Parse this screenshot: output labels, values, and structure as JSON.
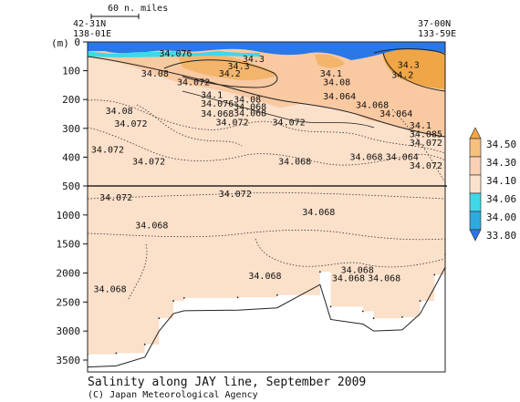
{
  "chart_data": {
    "type": "heatmap",
    "title": "Salinity along JAY line, September 2009",
    "credit": "(C) Japan Meteorological Agency",
    "ylabel": "(m)",
    "scale_bar_label": "60 n. miles",
    "left_station": {
      "lat": "42-31N",
      "lon": "138-01E"
    },
    "right_station": {
      "lat": "37-00N",
      "lon": "133-59E"
    },
    "y_upper_ticks": [
      0,
      100,
      200,
      300,
      400,
      500
    ],
    "y_lower_ticks": [
      1000,
      1500,
      2000,
      2500,
      3000,
      3500
    ],
    "ylim": [
      0,
      3800
    ],
    "depth_break": 500,
    "colorbar": {
      "levels": [
        "34.50",
        "34.30",
        "34.10",
        "34.06",
        "34.00",
        "33.80"
      ],
      "colors": [
        "#f0a646",
        "#f6c07e",
        "#fad1b4",
        "#fbe2cc",
        "#40d8e8",
        "#2eaae0",
        "#2a78e8"
      ]
    },
    "contour_labels": [
      {
        "text": "34.076",
        "x": 0.24,
        "y": 50
      },
      {
        "text": "34.08",
        "x": 0.18,
        "y": 120
      },
      {
        "text": "34.072",
        "x": 0.3,
        "y": 150
      },
      {
        "text": "34.3",
        "x": 0.47,
        "y": 95
      },
      {
        "text": "34.2",
        "x": 0.44,
        "y": 120
      },
      {
        "text": "34.3",
        "x": 0.52,
        "y": 70
      },
      {
        "text": "34.1",
        "x": 0.38,
        "y": 195
      },
      {
        "text": "34.076",
        "x": 0.38,
        "y": 225
      },
      {
        "text": "34.068",
        "x": 0.38,
        "y": 260
      },
      {
        "text": "34.072",
        "x": 0.43,
        "y": 290
      },
      {
        "text": "34.08",
        "x": 0.49,
        "y": 210
      },
      {
        "text": "34.068",
        "x": 0.49,
        "y": 235
      },
      {
        "text": "34.068",
        "x": 0.49,
        "y": 258
      },
      {
        "text": "34.1",
        "x": 0.78,
        "y": 120
      },
      {
        "text": "34.08",
        "x": 0.79,
        "y": 150
      },
      {
        "text": "34.064",
        "x": 0.79,
        "y": 200
      },
      {
        "text": "34.068",
        "x": 0.9,
        "y": 230
      },
      {
        "text": "34.064",
        "x": 0.98,
        "y": 260
      },
      {
        "text": "34.3",
        "x": 1.04,
        "y": 90
      },
      {
        "text": "34.2",
        "x": 1.02,
        "y": 125
      },
      {
        "text": "34.08",
        "x": 0.06,
        "y": 250
      },
      {
        "text": "34.072",
        "x": 0.09,
        "y": 295
      },
      {
        "text": "34.072",
        "x": 0.62,
        "y": 290
      },
      {
        "text": "34.072",
        "x": -0.04,
        "y": 385
      },
      {
        "text": "34.072",
        "x": 0.15,
        "y": 425
      },
      {
        "text": "34.068",
        "x": 0.64,
        "y": 425
      },
      {
        "text": "34.068",
        "x": 0.88,
        "y": 410
      },
      {
        "text": "34.064",
        "x": 1.0,
        "y": 410
      },
      {
        "text": "34.072",
        "x": 1.13,
        "y": 440
      },
      {
        "text": "34.1",
        "x": 1.16,
        "y": 300
      },
      {
        "text": "34.085",
        "x": 1.16,
        "y": 330
      },
      {
        "text": "34.072",
        "x": 1.16,
        "y": 360
      },
      {
        "text": "34.072",
        "x": 0.04,
        "y": 750
      },
      {
        "text": "34.072",
        "x": 0.44,
        "y": 690
      },
      {
        "text": "34.068",
        "x": 0.72,
        "y": 1000
      },
      {
        "text": "34.068",
        "x": 0.16,
        "y": 1230
      },
      {
        "text": "34.068",
        "x": 0.54,
        "y": 2100
      },
      {
        "text": "34.068",
        "x": 0.85,
        "y": 2000
      },
      {
        "text": "34.068",
        "x": 0.82,
        "y": 2140
      },
      {
        "text": "34.068",
        "x": 0.94,
        "y": 2140
      },
      {
        "text": "34.068",
        "x": 0.02,
        "y": 2330
      }
    ],
    "bottom_profile": [
      {
        "x": 0.0,
        "y": 3620
      },
      {
        "x": 0.08,
        "y": 3600
      },
      {
        "x": 0.16,
        "y": 3450
      },
      {
        "x": 0.2,
        "y": 3000
      },
      {
        "x": 0.24,
        "y": 2700
      },
      {
        "x": 0.27,
        "y": 2650
      },
      {
        "x": 0.42,
        "y": 2640
      },
      {
        "x": 0.53,
        "y": 2600
      },
      {
        "x": 0.65,
        "y": 2200
      },
      {
        "x": 0.68,
        "y": 2800
      },
      {
        "x": 0.77,
        "y": 2880
      },
      {
        "x": 0.8,
        "y": 3000
      },
      {
        "x": 0.88,
        "y": 2980
      },
      {
        "x": 0.93,
        "y": 2700
      },
      {
        "x": 0.97,
        "y": 2250
      },
      {
        "x": 1.0,
        "y": 1900
      }
    ]
  }
}
